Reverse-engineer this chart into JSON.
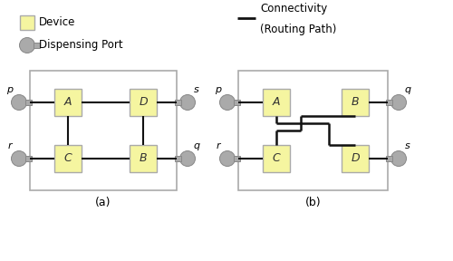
{
  "bg_color": "#ffffff",
  "box_fill": "#f5f5a0",
  "box_edge": "#aaaaaa",
  "port_fill": "#aaaaaa",
  "port_edge": "#888888",
  "line_color": "#111111",
  "frame_edge": "#aaaaaa",
  "frame_fill": "#ffffff",
  "title_a": "(a)",
  "title_b": "(b)",
  "legend_device": "Device",
  "legend_port": "Dispensing Port",
  "legend_conn_line1": "Connectivity",
  "legend_conn_line2": "(Routing Path)"
}
